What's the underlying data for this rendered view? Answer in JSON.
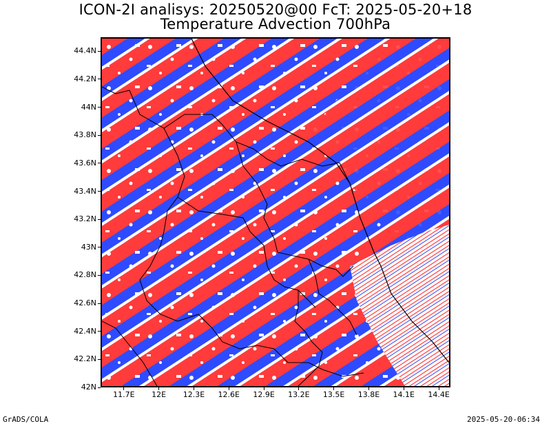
{
  "title": {
    "line1": "ICON-2I analisys: 20250520@00 FcT: 2025-05-20+18",
    "line2": "Temperature Advection 700hPa"
  },
  "map": {
    "lon_range": [
      11.5,
      14.5
    ],
    "lat_range": [
      42.0,
      44.5
    ],
    "lat_ticks": [
      {
        "value": 44.4,
        "label": "44.4N"
      },
      {
        "value": 44.2,
        "label": "44.2N"
      },
      {
        "value": 44.0,
        "label": "44N"
      },
      {
        "value": 43.8,
        "label": "43.8N"
      },
      {
        "value": 43.6,
        "label": "43.6N"
      },
      {
        "value": 43.4,
        "label": "43.4N"
      },
      {
        "value": 43.2,
        "label": "43.2N"
      },
      {
        "value": 43.0,
        "label": "43N"
      },
      {
        "value": 42.8,
        "label": "42.8N"
      },
      {
        "value": 42.6,
        "label": "42.6N"
      },
      {
        "value": 42.4,
        "label": "42.4N"
      },
      {
        "value": 42.2,
        "label": "42.2N"
      },
      {
        "value": 42.0,
        "label": "42N"
      }
    ],
    "lon_ticks": [
      {
        "value": 11.7,
        "label": "11.7E"
      },
      {
        "value": 12.0,
        "label": "12E"
      },
      {
        "value": 12.3,
        "label": "12.3E"
      },
      {
        "value": 12.6,
        "label": "12.6E"
      },
      {
        "value": 12.9,
        "label": "12.9E"
      },
      {
        "value": 13.2,
        "label": "13.2E"
      },
      {
        "value": 13.5,
        "label": "13.5E"
      },
      {
        "value": 13.8,
        "label": "13.8E"
      },
      {
        "value": 14.1,
        "label": "14.1E"
      },
      {
        "value": 14.4,
        "label": "14.4E"
      }
    ],
    "colors": {
      "warm_advection": "#ff3b3b",
      "cold_advection": "#2e4bff",
      "boundaries": "#000000",
      "frame": "#000000"
    }
  },
  "footer": {
    "left": "GrADS/COLA",
    "right": "2025-05-20-06:34"
  }
}
